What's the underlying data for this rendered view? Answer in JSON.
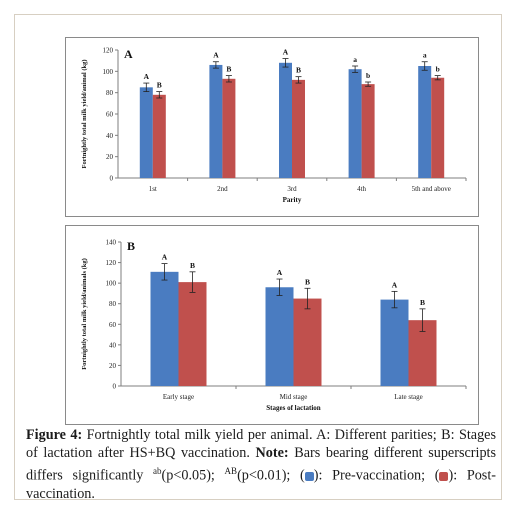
{
  "chart_data": [
    {
      "type": "bar",
      "panel_label": "A",
      "xlabel": "Parity",
      "ylabel": "Fortnightly total milk yield/animal (kg)",
      "ylim": [
        0,
        120
      ],
      "yticks": [
        "0",
        "20",
        "40",
        "60",
        "80",
        "100",
        "120"
      ],
      "categories": [
        "1st",
        "2nd",
        "3rd",
        "4th",
        "5th and above"
      ],
      "series": [
        {
          "color": "#4a7cc1",
          "values": [
            85,
            106,
            108,
            102,
            105
          ],
          "errors": [
            4,
            3,
            4,
            3,
            4
          ],
          "labels": [
            "A",
            "A",
            "A",
            "a",
            "a"
          ]
        },
        {
          "color": "#c0504d",
          "values": [
            78,
            93,
            92,
            88,
            94
          ],
          "errors": [
            3,
            3,
            3,
            2,
            2
          ],
          "labels": [
            "B",
            "B",
            "B",
            "b",
            "b"
          ]
        }
      ],
      "grid": false
    },
    {
      "type": "bar",
      "panel_label": "B",
      "xlabel": "Stages of lactation",
      "ylabel": "Fortnightly total milk yield/animals (kg)",
      "ylim": [
        0,
        140
      ],
      "yticks": [
        "0",
        "20",
        "40",
        "60",
        "80",
        "100",
        "120",
        "140"
      ],
      "categories": [
        "Early stage",
        "Mid stage",
        "Late stage"
      ],
      "series": [
        {
          "color": "#4a7cc1",
          "values": [
            111,
            96,
            84
          ],
          "errors": [
            8,
            8,
            8
          ],
          "labels": [
            "A",
            "A",
            "A"
          ]
        },
        {
          "color": "#c0504d",
          "values": [
            101,
            85,
            64
          ],
          "errors": [
            10,
            10,
            11
          ],
          "labels": [
            "B",
            "B",
            "B"
          ]
        }
      ],
      "grid": false
    }
  ],
  "caption": {
    "figure_label": "Figure 4:",
    "line1": " Fortnightly total milk yield per animal. A: Different parities; B: Stages of lactation after HS+BQ vaccination. ",
    "note_label": "Note:",
    "line2": " Bars bearing different superscripts differs significantly ",
    "sup_ab": "ab",
    "p1": "(p<0.05); ",
    "sup_AB": "AB",
    "p2": "(p<0.01); (",
    "legend_pre": "): Pre-vaccination; (",
    "legend_post": "): Post-vaccination."
  }
}
